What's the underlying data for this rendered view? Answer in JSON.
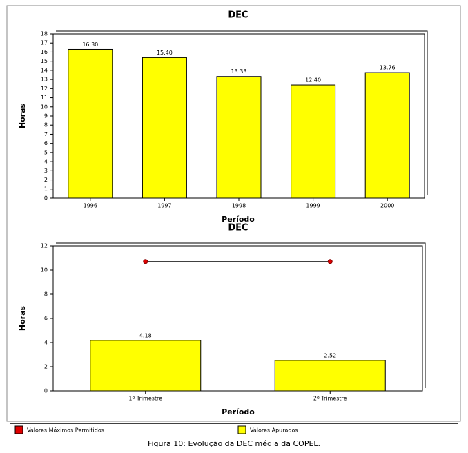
{
  "chart_data": [
    {
      "type": "bar",
      "title": "DEC",
      "ylabel": "Horas",
      "xlabel": "Período",
      "categories": [
        "1996",
        "1997",
        "1998",
        "1999",
        "2000"
      ],
      "values": [
        16.3,
        15.4,
        13.33,
        12.4,
        13.76
      ],
      "value_labels": [
        "16.30",
        "15.40",
        "13.33",
        "12.40",
        "13.76"
      ],
      "color": "#ffff00",
      "ylim": [
        0,
        18
      ],
      "yticks": [
        0,
        1,
        2,
        3,
        4,
        5,
        6,
        7,
        8,
        9,
        10,
        11,
        12,
        13,
        14,
        15,
        16,
        17,
        18
      ]
    },
    {
      "type": "bar",
      "title": "DEC",
      "ylabel": "Horas",
      "xlabel": "Período",
      "categories": [
        "1º Trimestre",
        "2º Trimestre"
      ],
      "series": [
        {
          "name": "Valores Máximos Permitidos",
          "type": "line",
          "color": "#e00000",
          "values": [
            10.7,
            10.7
          ]
        },
        {
          "name": "Valores Apurados",
          "type": "bar",
          "color": "#ffff00",
          "values": [
            4.18,
            2.52
          ]
        }
      ],
      "ylim": [
        0,
        12
      ],
      "yticks": [
        0,
        2,
        4,
        6,
        8,
        10,
        12
      ]
    }
  ],
  "caption": "Figura 10: Evolução da DEC média da COPEL."
}
